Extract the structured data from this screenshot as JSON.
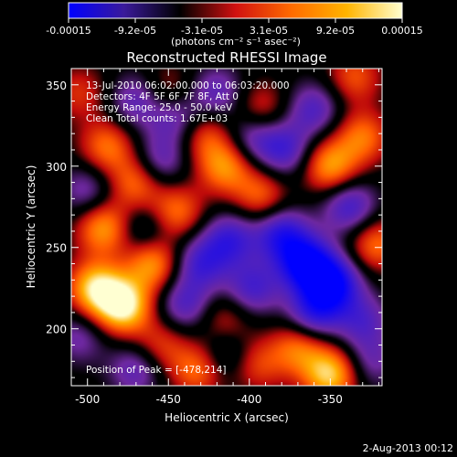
{
  "chart_data": {
    "type": "heatmap",
    "title": "Reconstructed RHESSI Image",
    "xlabel": "Heliocentric X (arcsec)",
    "ylabel": "Heliocentric Y (arcsec)",
    "xlim": [
      -510,
      -318
    ],
    "ylim": [
      165,
      360
    ],
    "x_ticks": [
      -500,
      -450,
      -400,
      -350
    ],
    "x_tick_labels": [
      "-500",
      "-450",
      "-400",
      "-350"
    ],
    "y_ticks": [
      200,
      250,
      300,
      350
    ],
    "y_tick_labels": [
      "200",
      "250",
      "300",
      "350"
    ],
    "colorbar": {
      "min": -0.00015,
      "max": 0.00015,
      "tick_labels": [
        "-0.00015",
        "-9.2e-05",
        "-3.1e-05",
        "3.1e-05",
        "9.2e-05",
        "0.00015"
      ],
      "unit_label": "(photons cm⁻² s⁻¹ asec⁻²)",
      "colors": [
        "#0000ff",
        "#3a1a9a",
        "#000000",
        "#d01010",
        "#ff6a00",
        "#ffb400",
        "#ffffd0"
      ]
    },
    "annotations": {
      "time_range": "13-Jul-2010 06:02:00.000 to 06:03:20.000",
      "detectors": "Detectors: 4F 5F 6F 7F 8F, Att 0",
      "energy_range": "Energy Range: 25.0 - 50.0 keV",
      "method": "Clean     Total counts: 1.67E+03",
      "peak": "Position of Peak = [-478,214]"
    },
    "peak_position": [
      -478,
      214
    ],
    "blobs": [
      {
        "x": -478,
        "y": 214,
        "v": 1.0
      },
      {
        "x": -495,
        "y": 225,
        "v": 0.85
      },
      {
        "x": -460,
        "y": 240,
        "v": 0.7
      },
      {
        "x": -490,
        "y": 262,
        "v": 0.7
      },
      {
        "x": -470,
        "y": 290,
        "v": 0.55
      },
      {
        "x": -488,
        "y": 312,
        "v": 0.55
      },
      {
        "x": -445,
        "y": 272,
        "v": 0.55
      },
      {
        "x": -455,
        "y": 190,
        "v": 0.4
      },
      {
        "x": -432,
        "y": 175,
        "v": 0.55
      },
      {
        "x": -415,
        "y": 205,
        "v": 0.35
      },
      {
        "x": -415,
        "y": 300,
        "v": 0.65
      },
      {
        "x": -428,
        "y": 320,
        "v": 0.45
      },
      {
        "x": -393,
        "y": 335,
        "v": 0.4
      },
      {
        "x": -393,
        "y": 282,
        "v": 0.5
      },
      {
        "x": -350,
        "y": 300,
        "v": 0.7
      },
      {
        "x": -330,
        "y": 318,
        "v": 0.55
      },
      {
        "x": -322,
        "y": 252,
        "v": 0.55
      },
      {
        "x": -335,
        "y": 355,
        "v": 0.45
      },
      {
        "x": -370,
        "y": 188,
        "v": 0.55
      },
      {
        "x": -350,
        "y": 172,
        "v": 0.85
      },
      {
        "x": -395,
        "y": 178,
        "v": 0.4
      },
      {
        "x": -450,
        "y": 345,
        "v": 0.35
      },
      {
        "x": -505,
        "y": 345,
        "v": 0.35
      },
      {
        "x": -465,
        "y": 260,
        "v": -0.35
      },
      {
        "x": -430,
        "y": 240,
        "v": -0.55
      },
      {
        "x": -412,
        "y": 255,
        "v": -0.6
      },
      {
        "x": -440,
        "y": 215,
        "v": -0.5
      },
      {
        "x": -398,
        "y": 225,
        "v": -0.55
      },
      {
        "x": -365,
        "y": 240,
        "v": -1.0
      },
      {
        "x": -348,
        "y": 228,
        "v": -0.9
      },
      {
        "x": -380,
        "y": 258,
        "v": -0.7
      },
      {
        "x": -338,
        "y": 275,
        "v": -0.6
      },
      {
        "x": -360,
        "y": 210,
        "v": -0.65
      },
      {
        "x": -378,
        "y": 310,
        "v": -0.55
      },
      {
        "x": -398,
        "y": 318,
        "v": -0.45
      },
      {
        "x": -360,
        "y": 335,
        "v": -0.5
      },
      {
        "x": -445,
        "y": 330,
        "v": -0.5
      },
      {
        "x": -470,
        "y": 340,
        "v": -0.45
      },
      {
        "x": -420,
        "y": 345,
        "v": -0.45
      },
      {
        "x": -455,
        "y": 303,
        "v": -0.45
      },
      {
        "x": -500,
        "y": 285,
        "v": -0.4
      },
      {
        "x": -505,
        "y": 195,
        "v": -0.35
      },
      {
        "x": -470,
        "y": 175,
        "v": -0.45
      },
      {
        "x": -415,
        "y": 185,
        "v": -0.35
      },
      {
        "x": -330,
        "y": 205,
        "v": -0.45
      },
      {
        "x": -325,
        "y": 180,
        "v": -0.35
      }
    ]
  },
  "footer": {
    "date": "2-Aug-2013 00:12"
  }
}
